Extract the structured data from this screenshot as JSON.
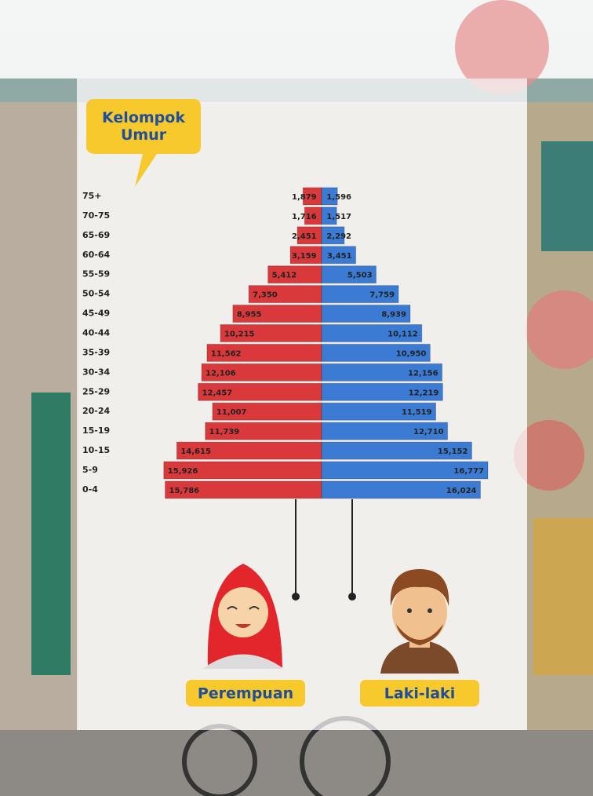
{
  "annotation": "Kelompok Umur",
  "chart_data": {
    "type": "pyramid",
    "categories": [
      "75+",
      "70-75",
      "65-69",
      "60-64",
      "55-59",
      "50-54",
      "45-49",
      "40-44",
      "35-39",
      "30-34",
      "25-29",
      "20-24",
      "15-19",
      "10-15",
      "5-9",
      "0-4"
    ],
    "series": [
      {
        "name": "Perempuan",
        "color": "#d9393b",
        "values": [
          1879,
          1716,
          2451,
          3159,
          5412,
          7350,
          8955,
          10215,
          11562,
          12106,
          12457,
          11007,
          11739,
          14615,
          15926,
          15786
        ],
        "value_labels": [
          "1,879",
          "1,716",
          "2,451",
          "3,159",
          "5,412",
          "7,350",
          "8,955",
          "10,215",
          "11,562",
          "12,106",
          "12,457",
          "11,007",
          "11,739",
          "14,615",
          "15,926",
          "15,786"
        ]
      },
      {
        "name": "Laki-laki",
        "color": "#3b7bd4",
        "values": [
          1596,
          1517,
          2292,
          3451,
          5503,
          7759,
          8939,
          10112,
          10950,
          12156,
          12219,
          11519,
          12710,
          15152,
          16777,
          16024
        ],
        "value_labels": [
          "1,596",
          "1,517",
          "2,292",
          "3,451",
          "5,503",
          "7,759",
          "8,939",
          "10,112",
          "10,950",
          "12,156",
          "12,219",
          "11,519",
          "12,710",
          "15,152",
          "16,777",
          "16,024"
        ]
      }
    ]
  }
}
